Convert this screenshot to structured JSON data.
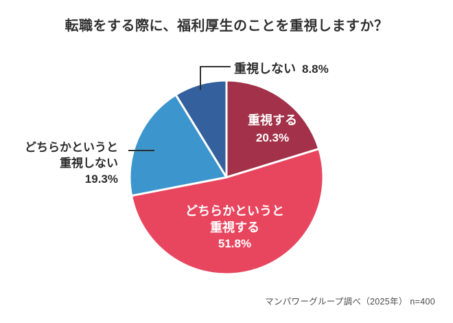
{
  "title": "転職をする際に、福利厚生のことを重視しますか？",
  "footer": "マンパワーグループ調べ（2025年） n=400",
  "chart_data": {
    "type": "pie",
    "title": "転職をする際に、福利厚生のことを重視しますか？",
    "source_note": "マンパワーグループ調べ（2025年） n=400",
    "start_angle": "12-oclock",
    "direction": "clockwise",
    "border_color": "#FFFFFF",
    "leader_line_color": "#2E2E2E",
    "slices": [
      {
        "label": "重視する",
        "value": 20.3,
        "pct_label": "20.3%",
        "color": "#A23149",
        "text_color": "#FFFFFF",
        "label_position": "inside"
      },
      {
        "label": "どちらかというと重視する",
        "label_lines": [
          "どちらかというと",
          "重視する"
        ],
        "value": 51.8,
        "pct_label": "51.8%",
        "color": "#E8465F",
        "text_color": "#FFFFFF",
        "label_position": "inside"
      },
      {
        "label": "どちらかというと重視しない",
        "label_lines": [
          "どちらかというと",
          "重視しない"
        ],
        "value": 19.3,
        "pct_label": "19.3%",
        "color": "#3D95CE",
        "text_color": "#2B2B2B",
        "label_position": "outside-left"
      },
      {
        "label": "重視しない",
        "value": 8.8,
        "pct_label": "8.8%",
        "color": "#34619D",
        "text_color": "#2B2B2B",
        "label_position": "outside-top"
      }
    ]
  }
}
